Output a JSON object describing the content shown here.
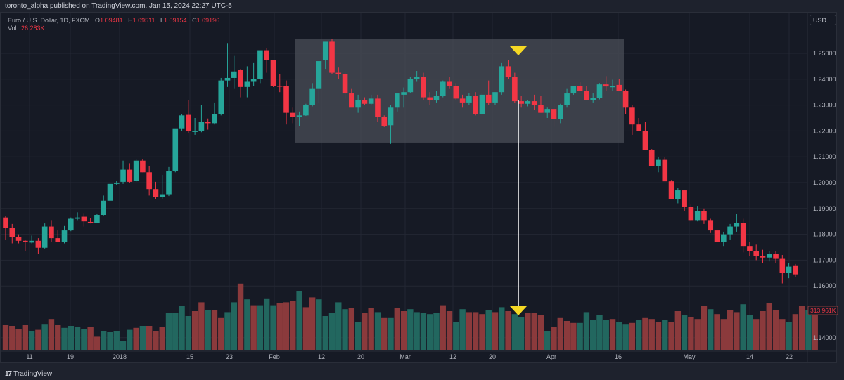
{
  "header": {
    "published": "toronto_alpha published on TradingView.com, Jan 15, 2024 22:27 UTC-5"
  },
  "legend": {
    "symbol": "Euro / U.S. Dollar, 1D, FXCM",
    "open_label": "O",
    "open": "1.09481",
    "high_label": "H",
    "high": "1.09511",
    "low_label": "L",
    "low": "1.09154",
    "close_label": "C",
    "close": "1.09196",
    "vol_label": "Vol",
    "vol": "26.283K"
  },
  "currency_button": "USD",
  "volume_badge": "313.961K",
  "footer": {
    "logo_mark": "17",
    "logo_text": "TradingView"
  },
  "colors": {
    "background": "#161a25",
    "up": "#26a69a",
    "down": "#f23645",
    "vol_up": "#22675f",
    "vol_down": "#8b3a3c",
    "highlight_box": "#4a4d57",
    "marker": "#f5d824",
    "grid": "#232733"
  },
  "chart_data": {
    "type": "candlestick",
    "title": "Euro / U.S. Dollar, 1D, FXCM",
    "ylabel": "USD",
    "price_ticks": [
      "1.25000",
      "1.24000",
      "1.23000",
      "1.22000",
      "1.21000",
      "1.20000",
      "1.19000",
      "1.18000",
      "1.17000",
      "1.16000",
      "1.14000"
    ],
    "x_ticks": [
      {
        "label": "11",
        "x": 42
      },
      {
        "label": "19",
        "x": 100
      },
      {
        "label": "2018",
        "x": 170
      },
      {
        "label": "15",
        "x": 270
      },
      {
        "label": "23",
        "x": 326
      },
      {
        "label": "Feb",
        "x": 390
      },
      {
        "label": "12",
        "x": 457
      },
      {
        "label": "20",
        "x": 513
      },
      {
        "label": "Mar",
        "x": 576
      },
      {
        "label": "12",
        "x": 644
      },
      {
        "label": "20",
        "x": 700
      },
      {
        "label": "Apr",
        "x": 784
      },
      {
        "label": "16",
        "x": 879
      },
      {
        "label": "May",
        "x": 980
      },
      {
        "label": "14",
        "x": 1066
      },
      {
        "label": "22",
        "x": 1122
      }
    ],
    "ylim": [
      1.135,
      1.262
    ],
    "annotations": [
      {
        "type": "rectangle",
        "label": "consolidation range",
        "price_top": 1.2555,
        "price_bottom": 1.2155,
        "x_start": 420,
        "x_end": 887
      },
      {
        "type": "arrow-marker",
        "label": "top marker",
        "x": 737,
        "y": 72
      },
      {
        "type": "arrow-marker",
        "label": "volume marker",
        "x": 737,
        "y": 442
      },
      {
        "type": "vertical-line",
        "x": 737,
        "y_start": 142,
        "y_end": 436
      }
    ],
    "candles": [
      [
        1.1865,
        1.187,
        1.178,
        1.1825
      ],
      [
        1.1825,
        1.184,
        1.1765,
        1.179
      ],
      [
        1.179,
        1.18,
        1.1765,
        1.1775
      ],
      [
        1.1775,
        1.1778,
        1.1735,
        1.1772
      ],
      [
        1.1768,
        1.1795,
        1.1765,
        1.1775
      ],
      [
        1.1775,
        1.1785,
        1.1725,
        1.1748
      ],
      [
        1.1748,
        1.1842,
        1.1745,
        1.183
      ],
      [
        1.183,
        1.1855,
        1.177,
        1.1785
      ],
      [
        1.1785,
        1.1815,
        1.177,
        1.177
      ],
      [
        1.177,
        1.1832,
        1.1765,
        1.1815
      ],
      [
        1.1815,
        1.1865,
        1.1812,
        1.186
      ],
      [
        1.186,
        1.1885,
        1.1855,
        1.1865
      ],
      [
        1.1868,
        1.1882,
        1.183,
        1.185
      ],
      [
        1.1848,
        1.1862,
        1.1842,
        1.1845
      ],
      [
        1.1845,
        1.188,
        1.1843,
        1.1875
      ],
      [
        1.1875,
        1.195,
        1.1873,
        1.193
      ],
      [
        1.193,
        1.2,
        1.1925,
        1.1995
      ],
      [
        1.1995,
        1.2008,
        1.199,
        1.2
      ],
      [
        1.2003,
        1.2085,
        1.1995,
        1.205
      ],
      [
        1.205,
        1.2075,
        1.2,
        1.2003
      ],
      [
        1.2008,
        1.209,
        1.2003,
        1.2085
      ],
      [
        1.2085,
        1.2092,
        1.204,
        1.204
      ],
      [
        1.204,
        1.2065,
        1.195,
        1.1975
      ],
      [
        1.1975,
        1.2003,
        1.1935,
        1.1945
      ],
      [
        1.1945,
        1.203,
        1.1935,
        1.1955
      ],
      [
        1.1955,
        1.206,
        1.1948,
        1.2045
      ],
      [
        1.2045,
        1.22,
        1.204,
        1.221
      ],
      [
        1.221,
        1.2265,
        1.22,
        1.226
      ],
      [
        1.2262,
        1.232,
        1.219,
        1.22
      ],
      [
        1.22,
        1.225,
        1.2185,
        1.22
      ],
      [
        1.22,
        1.23,
        1.2195,
        1.2235
      ],
      [
        1.2235,
        1.2248,
        1.2205,
        1.223
      ],
      [
        1.223,
        1.231,
        1.2225,
        1.2265
      ],
      [
        1.2265,
        1.2405,
        1.226,
        1.2395
      ],
      [
        1.2395,
        1.254,
        1.237,
        1.2405
      ],
      [
        1.2405,
        1.249,
        1.2365,
        1.243
      ],
      [
        1.2435,
        1.244,
        1.233,
        1.237
      ],
      [
        1.237,
        1.245,
        1.233,
        1.239
      ],
      [
        1.239,
        1.2465,
        1.2375,
        1.24
      ],
      [
        1.24,
        1.2475,
        1.2385,
        1.2512
      ],
      [
        1.2512,
        1.252,
        1.2425,
        1.2475
      ],
      [
        1.2475,
        1.2455,
        1.237,
        1.2375
      ],
      [
        1.2375,
        1.242,
        1.235,
        1.2372
      ],
      [
        1.2375,
        1.2395,
        1.2225,
        1.227
      ],
      [
        1.227,
        1.229,
        1.223,
        1.2255
      ],
      [
        1.2255,
        1.2275,
        1.222,
        1.226
      ],
      [
        1.226,
        1.2305,
        1.2258,
        1.23
      ],
      [
        1.23,
        1.2385,
        1.2295,
        1.2365
      ],
      [
        1.2365,
        1.245,
        1.2308,
        1.247
      ],
      [
        1.2475,
        1.2475,
        1.244,
        1.2545
      ],
      [
        1.2545,
        1.2555,
        1.242,
        1.2425
      ],
      [
        1.2425,
        1.2445,
        1.24,
        1.242
      ],
      [
        1.242,
        1.2425,
        1.2325,
        1.2345
      ],
      [
        1.2345,
        1.2365,
        1.23,
        1.229
      ],
      [
        1.229,
        1.234,
        1.227,
        1.232
      ],
      [
        1.232,
        1.233,
        1.23,
        1.2305
      ],
      [
        1.2305,
        1.234,
        1.23,
        1.2325
      ],
      [
        1.2325,
        1.234,
        1.2235,
        1.2255
      ],
      [
        1.2255,
        1.226,
        1.2215,
        1.222
      ],
      [
        1.2222,
        1.23,
        1.215,
        1.229
      ],
      [
        1.229,
        1.233,
        1.2275,
        1.2345
      ],
      [
        1.234,
        1.2368,
        1.229,
        1.235
      ],
      [
        1.235,
        1.241,
        1.2348,
        1.24
      ],
      [
        1.24,
        1.2432,
        1.239,
        1.241
      ],
      [
        1.241,
        1.2425,
        1.232,
        1.233
      ],
      [
        1.233,
        1.235,
        1.23,
        1.232
      ],
      [
        1.232,
        1.2355,
        1.231,
        1.2335
      ],
      [
        1.2335,
        1.2395,
        1.233,
        1.239
      ],
      [
        1.239,
        1.241,
        1.2365,
        1.2375
      ],
      [
        1.2375,
        1.2385,
        1.232,
        1.2325
      ],
      [
        1.2325,
        1.234,
        1.229,
        1.231
      ],
      [
        1.231,
        1.2345,
        1.23,
        1.2335
      ],
      [
        1.2335,
        1.235,
        1.226,
        1.2265
      ],
      [
        1.2265,
        1.2345,
        1.2262,
        1.234
      ],
      [
        1.234,
        1.2395,
        1.23,
        1.231
      ],
      [
        1.231,
        1.235,
        1.23,
        1.235
      ],
      [
        1.235,
        1.2465,
        1.234,
        1.245
      ],
      [
        1.245,
        1.2475,
        1.24,
        1.241
      ],
      [
        1.241,
        1.2425,
        1.231,
        1.2315
      ],
      [
        1.2315,
        1.2335,
        1.229,
        1.2305
      ],
      [
        1.2305,
        1.232,
        1.2295,
        1.2315
      ],
      [
        1.2315,
        1.234,
        1.228,
        1.23
      ],
      [
        1.23,
        1.2335,
        1.227,
        1.227
      ],
      [
        1.227,
        1.229,
        1.225,
        1.2285
      ],
      [
        1.2285,
        1.2305,
        1.2215,
        1.2245
      ],
      [
        1.2245,
        1.2305,
        1.223,
        1.23
      ],
      [
        1.23,
        1.2365,
        1.229,
        1.2345
      ],
      [
        1.2345,
        1.2375,
        1.234,
        1.2375
      ],
      [
        1.2375,
        1.2388,
        1.2355,
        1.2355
      ],
      [
        1.2355,
        1.2375,
        1.232,
        1.232
      ],
      [
        1.232,
        1.2345,
        1.231,
        1.2327
      ],
      [
        1.2327,
        1.2385,
        1.2322,
        1.238
      ],
      [
        1.238,
        1.2412,
        1.2355,
        1.2372
      ],
      [
        1.2372,
        1.2398,
        1.2355,
        1.2373
      ],
      [
        1.2378,
        1.24,
        1.2365,
        1.2355
      ],
      [
        1.2355,
        1.236,
        1.2265,
        1.229
      ],
      [
        1.229,
        1.23,
        1.2185,
        1.2225
      ],
      [
        1.2225,
        1.225,
        1.221,
        1.22
      ],
      [
        1.22,
        1.2235,
        1.2125,
        1.2125
      ],
      [
        1.2125,
        1.213,
        1.2065,
        1.2065
      ],
      [
        1.2065,
        1.21,
        1.204,
        1.2088
      ],
      [
        1.2088,
        1.21,
        1.201,
        1.2005
      ],
      [
        1.2005,
        1.201,
        1.1935,
        1.1935
      ],
      [
        1.1935,
        1.198,
        1.192,
        1.197
      ],
      [
        1.197,
        1.197,
        1.189,
        1.1905
      ],
      [
        1.1905,
        1.1915,
        1.185,
        1.1855
      ],
      [
        1.1855,
        1.191,
        1.185,
        1.189
      ],
      [
        1.189,
        1.19,
        1.184,
        1.1855
      ],
      [
        1.1855,
        1.186,
        1.1805,
        1.1815
      ],
      [
        1.1815,
        1.1825,
        1.178,
        1.177
      ],
      [
        1.177,
        1.181,
        1.1755,
        1.18
      ],
      [
        1.18,
        1.184,
        1.178,
        1.183
      ],
      [
        1.183,
        1.188,
        1.181,
        1.1845
      ],
      [
        1.1845,
        1.186,
        1.173,
        1.1755
      ],
      [
        1.1755,
        1.177,
        1.1715,
        1.1735
      ],
      [
        1.1735,
        1.176,
        1.17,
        1.1715
      ],
      [
        1.1715,
        1.174,
        1.169,
        1.171
      ],
      [
        1.171,
        1.1735,
        1.1695,
        1.1725
      ],
      [
        1.1725,
        1.1735,
        1.169,
        1.1705
      ],
      [
        1.1705,
        1.172,
        1.161,
        1.165
      ],
      [
        1.165,
        1.169,
        1.163,
        1.1675
      ],
      [
        1.168,
        1.1685,
        1.1635,
        1.1645
      ]
    ],
    "volume": [
      [
        0.86,
        0
      ],
      [
        0.85,
        0
      ],
      [
        0.82,
        0
      ],
      [
        0.86,
        0
      ],
      [
        0.8,
        1
      ],
      [
        0.81,
        0
      ],
      [
        0.87,
        1
      ],
      [
        0.92,
        0
      ],
      [
        0.86,
        0
      ],
      [
        0.83,
        1
      ],
      [
        0.85,
        1
      ],
      [
        0.84,
        1
      ],
      [
        0.82,
        1
      ],
      [
        0.84,
        0
      ],
      [
        0.74,
        0
      ],
      [
        0.8,
        1
      ],
      [
        0.79,
        1
      ],
      [
        0.8,
        1
      ],
      [
        0.7,
        1
      ],
      [
        0.81,
        1
      ],
      [
        0.83,
        0
      ],
      [
        0.85,
        1
      ],
      [
        0.85,
        0
      ],
      [
        0.8,
        0
      ],
      [
        0.84,
        0
      ],
      [
        0.98,
        1
      ],
      [
        0.98,
        1
      ],
      [
        1.05,
        1
      ],
      [
        0.95,
        1
      ],
      [
        1.0,
        0
      ],
      [
        1.09,
        0
      ],
      [
        1.01,
        1
      ],
      [
        1.01,
        0
      ],
      [
        0.93,
        0
      ],
      [
        0.99,
        1
      ],
      [
        1.09,
        1
      ],
      [
        1.28,
        0
      ],
      [
        1.12,
        1
      ],
      [
        1.06,
        0
      ],
      [
        1.06,
        1
      ],
      [
        1.13,
        1
      ],
      [
        1.06,
        1
      ],
      [
        1.08,
        0
      ],
      [
        1.09,
        0
      ],
      [
        1.1,
        0
      ],
      [
        1.2,
        1
      ],
      [
        1.04,
        0
      ],
      [
        1.14,
        0
      ],
      [
        1.12,
        1
      ],
      [
        0.95,
        1
      ],
      [
        0.98,
        1
      ],
      [
        1.09,
        1
      ],
      [
        1.02,
        1
      ],
      [
        1.03,
        0
      ],
      [
        0.89,
        1
      ],
      [
        0.98,
        0
      ],
      [
        1.03,
        0
      ],
      [
        0.99,
        1
      ],
      [
        0.93,
        0
      ],
      [
        0.93,
        1
      ],
      [
        1.03,
        0
      ],
      [
        1.0,
        0
      ],
      [
        1.02,
        1
      ],
      [
        0.99,
        1
      ],
      [
        0.98,
        1
      ],
      [
        0.97,
        1
      ],
      [
        0.98,
        1
      ],
      [
        1.06,
        0
      ],
      [
        1.0,
        0
      ],
      [
        0.89,
        1
      ],
      [
        1.02,
        1
      ],
      [
        0.99,
        0
      ],
      [
        0.99,
        0
      ],
      [
        0.97,
        0
      ],
      [
        1.01,
        1
      ],
      [
        0.99,
        0
      ],
      [
        1.04,
        1
      ],
      [
        1.0,
        0
      ],
      [
        0.97,
        1
      ],
      [
        0.94,
        1
      ],
      [
        0.98,
        0
      ],
      [
        0.98,
        0
      ],
      [
        0.96,
        0
      ],
      [
        0.8,
        1
      ],
      [
        0.84,
        0
      ],
      [
        0.93,
        0
      ],
      [
        0.9,
        0
      ],
      [
        0.88,
        0
      ],
      [
        0.88,
        1
      ],
      [
        0.99,
        1
      ],
      [
        0.91,
        1
      ],
      [
        0.96,
        1
      ],
      [
        0.91,
        1
      ],
      [
        0.92,
        0
      ],
      [
        0.89,
        1
      ],
      [
        0.87,
        1
      ],
      [
        0.88,
        0
      ],
      [
        0.91,
        1
      ],
      [
        0.93,
        0
      ],
      [
        0.92,
        0
      ],
      [
        0.89,
        0
      ],
      [
        0.91,
        1
      ],
      [
        0.89,
        0
      ],
      [
        1.0,
        0
      ],
      [
        0.96,
        1
      ],
      [
        0.94,
        0
      ],
      [
        0.92,
        0
      ],
      [
        1.05,
        0
      ],
      [
        1.02,
        1
      ],
      [
        0.97,
        0
      ],
      [
        0.92,
        0
      ],
      [
        1.01,
        0
      ],
      [
        0.99,
        0
      ],
      [
        1.07,
        1
      ],
      [
        0.96,
        1
      ],
      [
        0.92,
        0
      ],
      [
        1.0,
        0
      ],
      [
        1.08,
        0
      ],
      [
        1.01,
        0
      ],
      [
        0.92,
        0
      ],
      [
        0.89,
        1
      ],
      [
        0.97,
        0
      ],
      [
        1.05,
        0
      ],
      [
        1.01,
        1
      ],
      [
        1.01,
        0
      ]
    ]
  }
}
